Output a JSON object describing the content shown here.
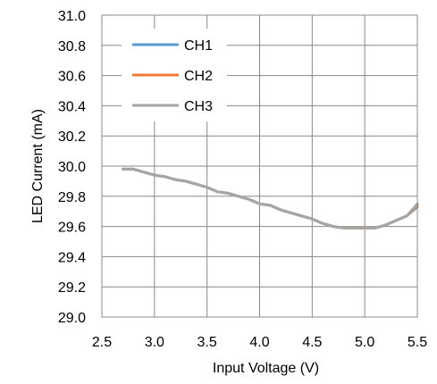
{
  "chart_data": {
    "type": "line",
    "title": "",
    "xlabel": "Input Voltage (V)",
    "ylabel": "LED Current (mA)",
    "xlim": [
      2.5,
      5.5
    ],
    "ylim": [
      29.0,
      31.0
    ],
    "x_ticks": [
      "2.5",
      "3.0",
      "3.5",
      "4.0",
      "4.5",
      "5.0",
      "5.5"
    ],
    "y_ticks": [
      "29.0",
      "29.2",
      "29.4",
      "29.6",
      "29.8",
      "30.0",
      "30.2",
      "30.4",
      "30.6",
      "30.8",
      "31.0"
    ],
    "grid": true,
    "legend_position": "top-left",
    "series": [
      {
        "name": "CH1",
        "color": "#5B9BD5",
        "x": [
          2.7,
          2.8,
          2.9,
          3.0,
          3.1,
          3.2,
          3.3,
          3.4,
          3.5,
          3.6,
          3.7,
          3.8,
          3.9,
          4.0,
          4.1,
          4.2,
          4.3,
          4.4,
          4.5,
          4.6,
          4.7,
          4.8,
          4.9,
          5.0,
          5.1,
          5.2,
          5.3,
          5.4,
          5.5
        ],
        "values": [
          29.98,
          29.98,
          29.96,
          29.94,
          29.93,
          29.91,
          29.9,
          29.88,
          29.86,
          29.83,
          29.82,
          29.8,
          29.78,
          29.75,
          29.74,
          29.71,
          29.69,
          29.67,
          29.65,
          29.62,
          29.6,
          29.59,
          29.59,
          29.59,
          29.59,
          29.61,
          29.64,
          29.67,
          29.73
        ]
      },
      {
        "name": "CH2",
        "color": "#ED7D31",
        "x": [
          2.7,
          2.8,
          2.9,
          3.0,
          3.1,
          3.2,
          3.3,
          3.4,
          3.5,
          3.6,
          3.7,
          3.8,
          3.9,
          4.0,
          4.1,
          4.2,
          4.3,
          4.4,
          4.5,
          4.6,
          4.7,
          4.8,
          4.9,
          5.0,
          5.1,
          5.2,
          5.3,
          5.4,
          5.5
        ],
        "values": [
          29.98,
          29.98,
          29.96,
          29.94,
          29.93,
          29.91,
          29.9,
          29.88,
          29.86,
          29.83,
          29.82,
          29.8,
          29.78,
          29.75,
          29.74,
          29.71,
          29.69,
          29.67,
          29.65,
          29.62,
          29.6,
          29.59,
          29.59,
          29.59,
          29.59,
          29.61,
          29.64,
          29.67,
          29.74
        ]
      },
      {
        "name": "CH3",
        "color": "#A5A5A5",
        "x": [
          2.7,
          2.8,
          2.9,
          3.0,
          3.1,
          3.2,
          3.3,
          3.4,
          3.5,
          3.6,
          3.7,
          3.8,
          3.9,
          4.0,
          4.1,
          4.2,
          4.3,
          4.4,
          4.5,
          4.6,
          4.7,
          4.8,
          4.9,
          5.0,
          5.1,
          5.2,
          5.3,
          5.4,
          5.5
        ],
        "values": [
          29.98,
          29.98,
          29.96,
          29.94,
          29.93,
          29.91,
          29.9,
          29.88,
          29.86,
          29.83,
          29.82,
          29.8,
          29.78,
          29.75,
          29.74,
          29.71,
          29.69,
          29.67,
          29.65,
          29.62,
          29.6,
          29.59,
          29.59,
          29.59,
          29.59,
          29.61,
          29.64,
          29.67,
          29.75
        ]
      }
    ]
  }
}
